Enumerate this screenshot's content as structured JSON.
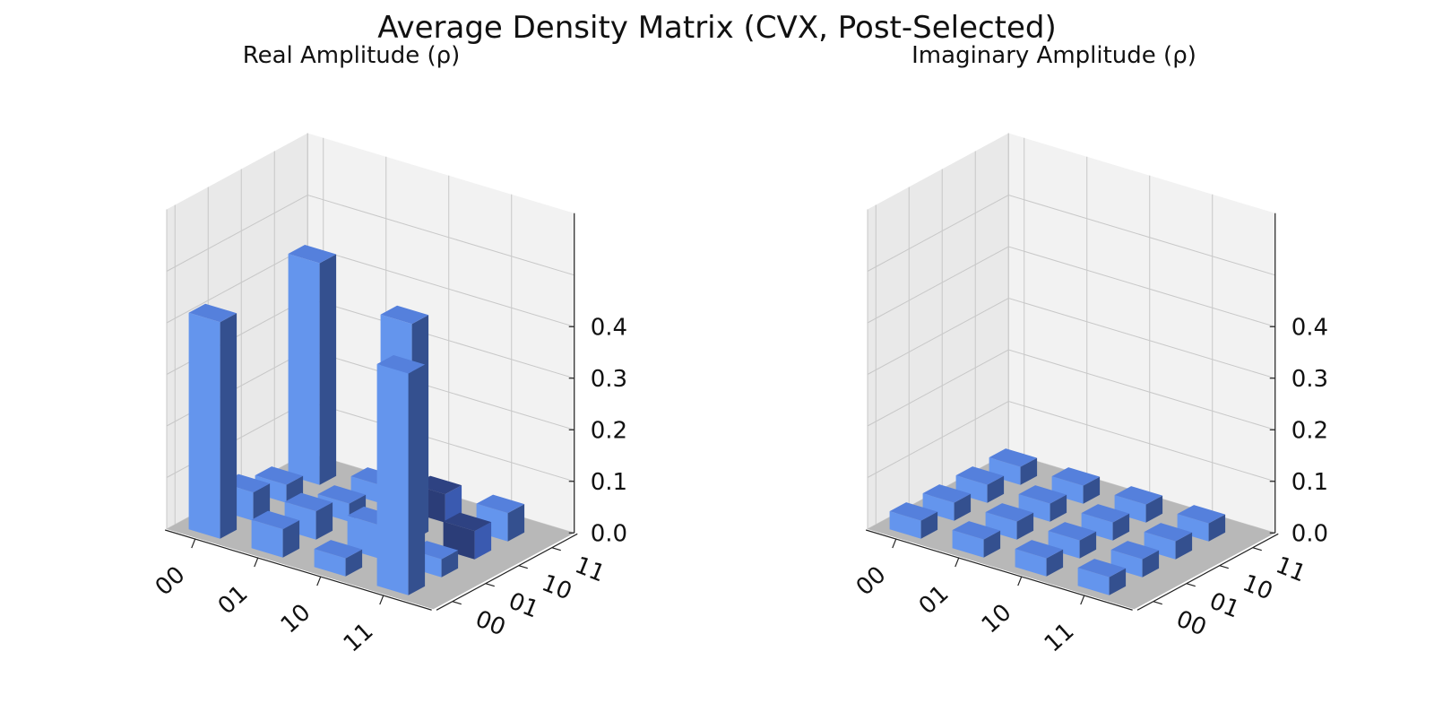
{
  "figure": {
    "title": "Average Density Matrix (CVX, Post-Selected)"
  },
  "colors": {
    "positive_face": "#6495ed",
    "positive_top": "#5580dc",
    "positive_side": "#34508f",
    "negative_face": "#2b3d78",
    "negative_top": "#2e4282",
    "negative_side": "#3a5ab0",
    "floor": "#b8b8b8",
    "pane_back": "#f2f2f2",
    "pane_side": "#e9e9e9",
    "grid": "#c8c8c8"
  },
  "chart_data": [
    {
      "type": "bar3d",
      "title": "Real Amplitude (ρ)",
      "row_labels": [
        "00",
        "01",
        "10",
        "11"
      ],
      "col_labels": [
        "00",
        "01",
        "10",
        "11"
      ],
      "zlim": [
        0,
        0.45
      ],
      "zticks": [
        "0.0",
        "0.1",
        "0.2",
        "0.3",
        "0.4"
      ],
      "grid": true,
      "values": [
        [
          0.42,
          0.02,
          0.0,
          0.43
        ],
        [
          0.02,
          0.02,
          0.0,
          0.0
        ],
        [
          0.0,
          0.03,
          0.42,
          -0.02
        ],
        [
          0.43,
          0.0,
          -0.02,
          0.02
        ]
      ]
    },
    {
      "type": "bar3d",
      "title": "Imaginary Amplitude (ρ)",
      "row_labels": [
        "00",
        "01",
        "10",
        "11"
      ],
      "col_labels": [
        "00",
        "01",
        "10",
        "11"
      ],
      "zlim": [
        0,
        0.45
      ],
      "zticks": [
        "0.0",
        "0.1",
        "0.2",
        "0.3",
        "0.4"
      ],
      "grid": true,
      "values": [
        [
          0.0,
          0.0,
          0.0,
          0.0
        ],
        [
          0.0,
          0.0,
          0.0,
          0.0
        ],
        [
          0.0,
          0.0,
          0.0,
          0.0
        ],
        [
          0.0,
          0.0,
          0.0,
          0.0
        ]
      ]
    }
  ]
}
